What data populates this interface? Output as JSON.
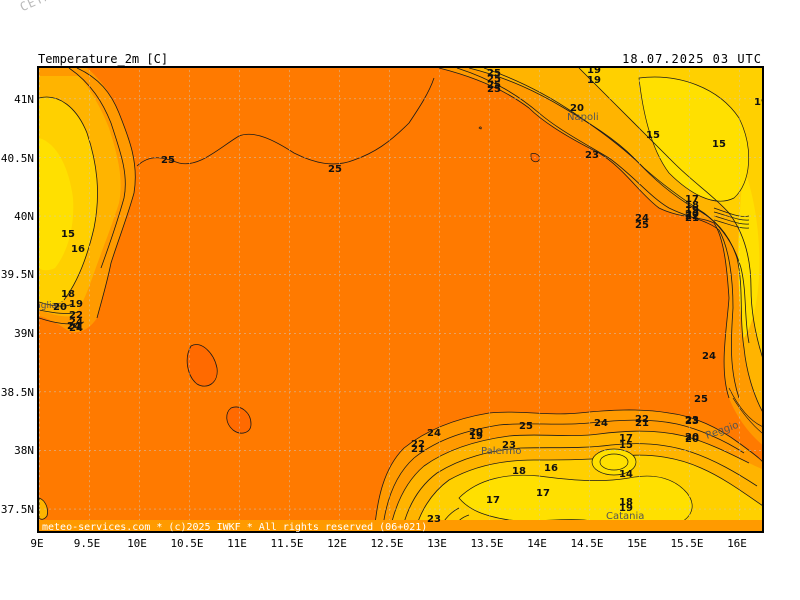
{
  "watermark": "CETA - Inst.",
  "title": {
    "left": "Temperature_2m [C]",
    "right": "18.07.2025 03 UTC"
  },
  "footer": "meteo-services.com * (c)2025 IWKF * All rights reserved (06+021)",
  "axes": {
    "lat_labels": [
      "41N",
      "40.5N",
      "40N",
      "39.5N",
      "39N",
      "38.5N",
      "38N",
      "37.5N"
    ],
    "lon_labels": [
      "9E",
      "9.5E",
      "10E",
      "10.5E",
      "11E",
      "11.5E",
      "12E",
      "12.5E",
      "13E",
      "13.5E",
      "14E",
      "14.5E",
      "15E",
      "15.5E",
      "16E"
    ]
  },
  "places": [
    "Napoli",
    "Palermo",
    "Catania",
    "Reggio",
    "Cagliari"
  ],
  "contour_labels": [
    "25",
    "25",
    "25",
    "25",
    "25",
    "25",
    "20",
    "19",
    "19",
    "15",
    "15",
    "19",
    "15",
    "16",
    "18",
    "20",
    "19",
    "22",
    "24",
    "24",
    "17",
    "18",
    "19",
    "20",
    "21",
    "22",
    "24",
    "25",
    "23",
    "24",
    "24",
    "25",
    "24",
    "25",
    "23",
    "22",
    "21",
    "20",
    "24",
    "22",
    "21",
    "20",
    "19",
    "23",
    "17",
    "15",
    "14",
    "16",
    "18",
    "17",
    "17",
    "18",
    "19",
    "23",
    "20",
    "23"
  ],
  "colors": {
    "background_orange": "#ff7a00",
    "band_warm": "#ff9a00",
    "band_mid": "#ffb400",
    "band_cool": "#ffd000",
    "band_coldest": "#ffe000",
    "contour_line": "#1a1a1a"
  }
}
